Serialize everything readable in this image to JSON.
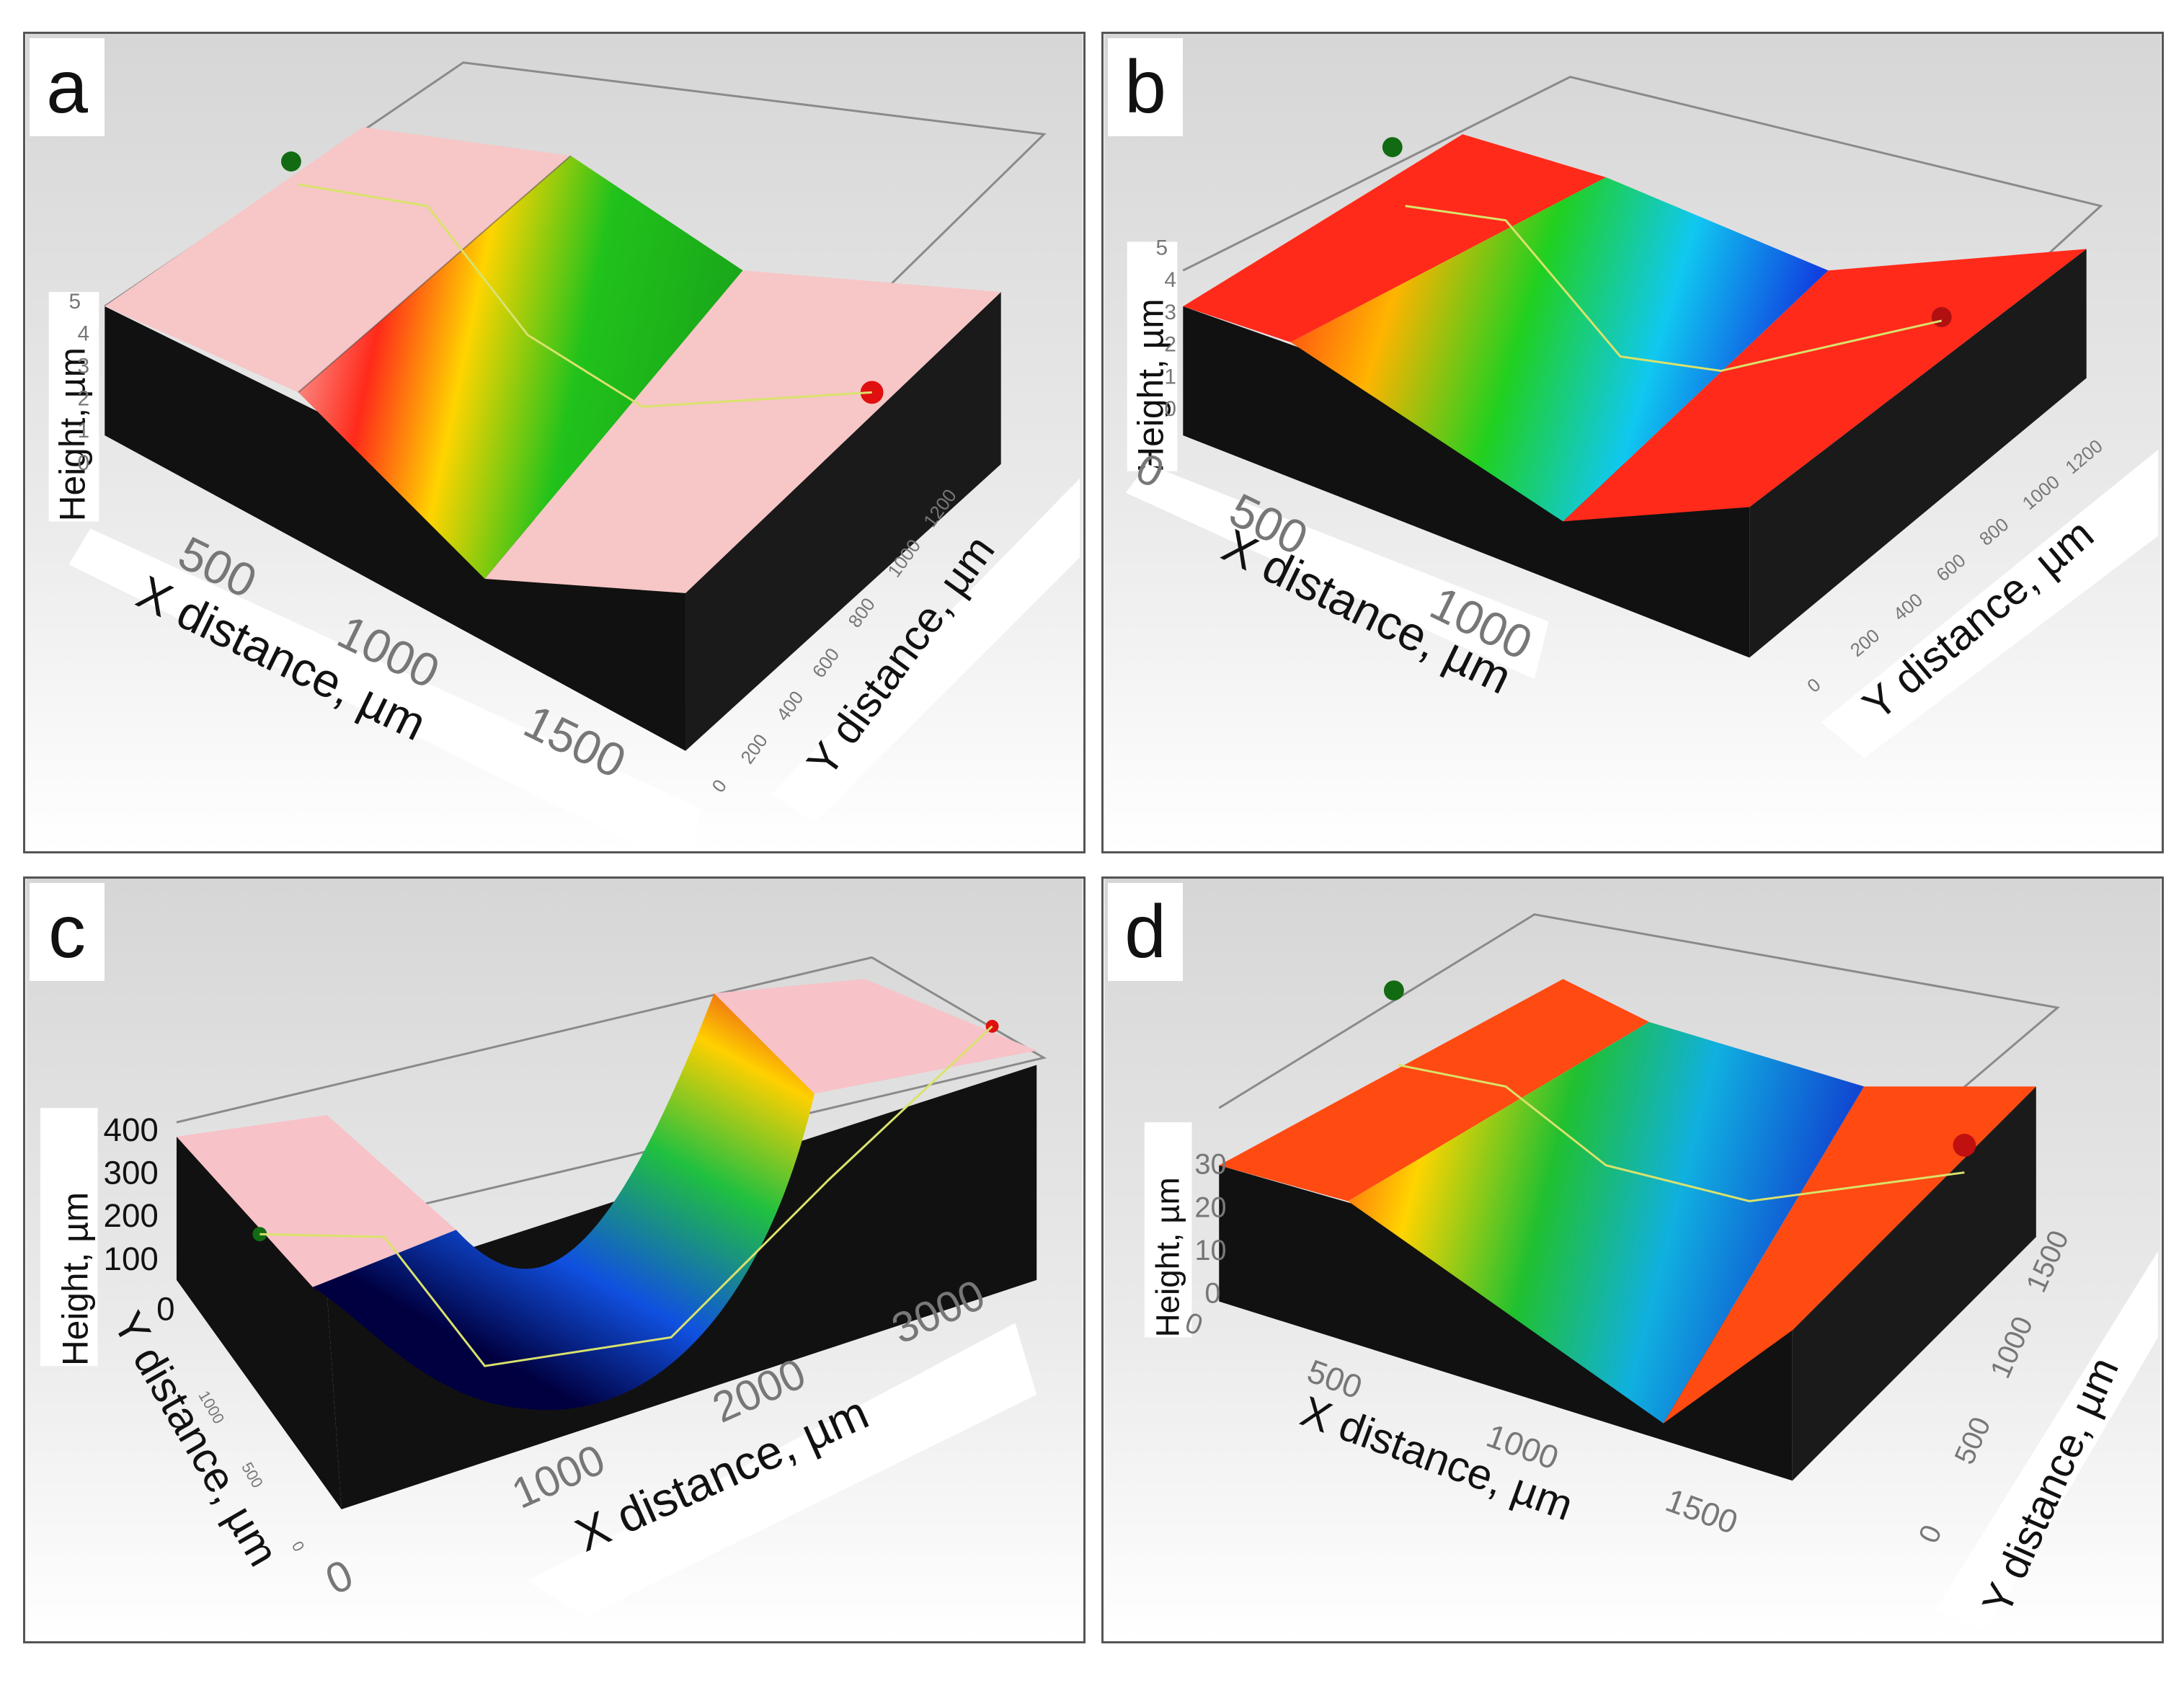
{
  "panels": [
    {
      "label": "a",
      "colors": {
        "top": "#f7c6c6",
        "cliff": "#111111",
        "trench": [
          "#f7c6c6",
          "#ff2a1a",
          "#ffd400",
          "#21c21b",
          "#1aa81a"
        ]
      },
      "height_label": "Height, µm",
      "height_ticks": [
        "5",
        "4",
        "3",
        "2",
        "1",
        "0"
      ],
      "x_label": "X distance, µm",
      "x_ticks": [
        "500",
        "1000",
        "1500"
      ],
      "y_label": "Y distance, µm",
      "y_ticks": [
        "0",
        "200",
        "400",
        "600",
        "800",
        "1000",
        "1200"
      ]
    },
    {
      "label": "b",
      "colors": {
        "top": "#ff2a1a",
        "cliff": "#111111",
        "trench": [
          "#ff2a1a",
          "#ffb400",
          "#20d020",
          "#10c8f0",
          "#1040e0"
        ]
      },
      "height_label": "Height, µm",
      "height_ticks": [
        "5",
        "4",
        "3",
        "2",
        "1",
        "0"
      ],
      "x_label": "X distance, µm",
      "x_ticks": [
        "0",
        "500",
        "1000"
      ],
      "y_label": "Y distance, µm",
      "y_ticks": [
        "0",
        "200",
        "400",
        "600",
        "800",
        "1000",
        "1200"
      ]
    },
    {
      "label": "c",
      "colors": {
        "top": "#f7c2c8",
        "cliff": "#111111",
        "trench": [
          "#e02020",
          "#ffd000",
          "#20c040",
          "#1050e0",
          "#000040"
        ]
      },
      "height_label": "Height, µm",
      "height_ticks": [
        "400",
        "300",
        "200",
        "100",
        "0"
      ],
      "x_label": "X distance, µm",
      "x_ticks": [
        "0",
        "1000",
        "2000",
        "3000"
      ],
      "y_label": "Y distance, µm",
      "y_ticks": [
        "0",
        "500",
        "1000"
      ]
    },
    {
      "label": "d",
      "colors": {
        "top": "#ff4a12",
        "cliff": "#111111",
        "trench": [
          "#ff4a12",
          "#ffd400",
          "#20c030",
          "#10b0e0",
          "#1040d0"
        ]
      },
      "height_label": "Height, µm",
      "height_ticks": [
        "30",
        "20",
        "10",
        "0"
      ],
      "x_label": "X distance, µm",
      "x_ticks": [
        "0",
        "500",
        "1000",
        "1500"
      ],
      "y_label": "Y distance, µm",
      "y_ticks": [
        "0",
        "500",
        "1000",
        "1500"
      ]
    }
  ]
}
